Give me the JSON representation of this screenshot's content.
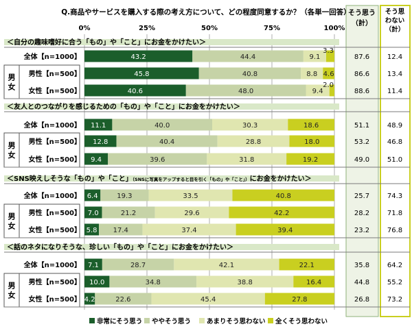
{
  "chart_data": {
    "type": "bar",
    "title": "Q.商品やサービスを購入する際の考え方について、どの程度同意するか？（各単一回答）",
    "x_ticks": [
      "0%",
      "25%",
      "50%",
      "75%",
      "100%"
    ],
    "xlim": [
      0,
      100
    ],
    "summary_headers": [
      "そう思う（計）",
      "そう思わない（計）"
    ],
    "gender_label": "男女",
    "series": [
      {
        "name": "非常にそう思う",
        "color": "#1b5e2b"
      },
      {
        "name": "ややそう思う",
        "color": "#c6d3a7"
      },
      {
        "name": "あまりそう思わない",
        "color": "#e0e6b0"
      },
      {
        "name": "全くそう思わない",
        "color": "#c9cf20"
      }
    ],
    "groups": [
      {
        "heading": "＜自分の趣味嗜好に合う「もの」や「こと」にお金をかけたい＞",
        "rows": [
          {
            "label": "全体【n=1000】",
            "values": [
              43.2,
              44.4,
              9.1,
              3.3
            ],
            "value_labels": [
              "43.2",
              "44.4",
              "9.1",
              "3.3"
            ],
            "agree": "87.6",
            "disagree": "12.4"
          },
          {
            "label": "男性【n=500】",
            "values": [
              45.8,
              40.8,
              8.8,
              4.6
            ],
            "value_labels": [
              "45.8",
              "40.8",
              "8.8",
              "4.6"
            ],
            "agree": "86.6",
            "disagree": "13.4"
          },
          {
            "label": "女性【n=500】",
            "values": [
              40.6,
              48.0,
              9.4,
              2.0
            ],
            "value_labels": [
              "40.6",
              "48.0",
              "9.4",
              "2.0"
            ],
            "agree": "88.6",
            "disagree": "11.4"
          }
        ]
      },
      {
        "heading": "＜友人とのつながりを感じるための「もの」や「こと」にお金をかけたい＞",
        "rows": [
          {
            "label": "全体【n=1000】",
            "values": [
              11.1,
              40.0,
              30.3,
              18.6
            ],
            "value_labels": [
              "11.1",
              "40.0",
              "30.3",
              "18.6"
            ],
            "agree": "51.1",
            "disagree": "48.9"
          },
          {
            "label": "男性【n=500】",
            "values": [
              12.8,
              40.4,
              28.8,
              18.0
            ],
            "value_labels": [
              "12.8",
              "40.4",
              "28.8",
              "18.0"
            ],
            "agree": "53.2",
            "disagree": "46.8"
          },
          {
            "label": "女性【n=500】",
            "values": [
              9.4,
              39.6,
              31.8,
              19.2
            ],
            "value_labels": [
              "9.4",
              "39.6",
              "31.8",
              "19.2"
            ],
            "agree": "49.0",
            "disagree": "51.0"
          }
        ]
      },
      {
        "heading": "＜SNS映えしそうな「もの」や「こと」",
        "heading_small": "（SNSに写真をアップすると目を引く「もの」や「こと」）",
        "heading_tail": "にお金をかけたい＞",
        "rows": [
          {
            "label": "全体【n=1000】",
            "values": [
              6.4,
              19.3,
              33.5,
              40.8
            ],
            "value_labels": [
              "6.4",
              "19.3",
              "33.5",
              "40.8"
            ],
            "agree": "25.7",
            "disagree": "74.3"
          },
          {
            "label": "男性【n=500】",
            "values": [
              7.0,
              21.2,
              29.6,
              42.2
            ],
            "value_labels": [
              "7.0",
              "21.2",
              "29.6",
              "42.2"
            ],
            "agree": "28.2",
            "disagree": "71.8"
          },
          {
            "label": "女性【n=500】",
            "values": [
              5.8,
              17.4,
              37.4,
              39.4
            ],
            "value_labels": [
              "5.8",
              "17.4",
              "37.4",
              "39.4"
            ],
            "agree": "23.2",
            "disagree": "76.8"
          }
        ]
      },
      {
        "heading": "＜話のネタになりそうな、珍しい「もの」や「こと」にお金をかけたい＞",
        "rows": [
          {
            "label": "全体【n=1000】",
            "values": [
              7.1,
              28.7,
              42.1,
              22.1
            ],
            "value_labels": [
              "7.1",
              "28.7",
              "42.1",
              "22.1"
            ],
            "agree": "35.8",
            "disagree": "64.2"
          },
          {
            "label": "男性【n=500】",
            "values": [
              10.0,
              34.8,
              38.8,
              16.4
            ],
            "value_labels": [
              "10.0",
              "34.8",
              "38.8",
              "16.4"
            ],
            "agree": "44.8",
            "disagree": "55.2"
          },
          {
            "label": "女性【n=500】",
            "values": [
              4.2,
              22.6,
              45.4,
              27.8
            ],
            "value_labels": [
              "4.2",
              "22.6",
              "45.4",
              "27.8"
            ],
            "agree": "26.8",
            "disagree": "73.2"
          }
        ]
      }
    ]
  }
}
